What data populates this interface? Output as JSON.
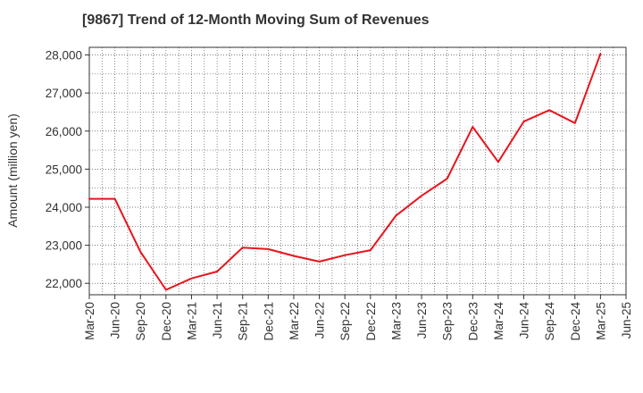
{
  "chart_data": {
    "type": "line",
    "title": "[9867]  Trend of 12-Month Moving Sum of Revenues",
    "xlabel": "",
    "ylabel": "Amount (million yen)",
    "ylim": [
      21700,
      28200
    ],
    "yticks": [
      22000,
      23000,
      24000,
      25000,
      26000,
      27000,
      28000
    ],
    "ytick_labels": [
      "22,000",
      "23,000",
      "24,000",
      "25,000",
      "26,000",
      "27,000",
      "28,000"
    ],
    "x_tick_labels": [
      "Mar-20",
      "Jun-20",
      "Sep-20",
      "Dec-20",
      "Mar-21",
      "Jun-21",
      "Sep-21",
      "Dec-21",
      "Mar-22",
      "Jun-22",
      "Sep-22",
      "Dec-22",
      "Mar-23",
      "Jun-23",
      "Sep-23",
      "Dec-23",
      "Mar-24",
      "Jun-24",
      "Sep-24",
      "Dec-24",
      "Mar-25",
      "Jun-25"
    ],
    "grid": true,
    "series": [
      {
        "color": "#e8141c",
        "x": [
          "Mar-20",
          "Jun-20",
          "Sep-20",
          "Dec-20",
          "Mar-21",
          "Jun-21",
          "Sep-21",
          "Dec-21",
          "Mar-22",
          "Jun-22",
          "Sep-22",
          "Dec-22",
          "Mar-23",
          "Jun-23",
          "Sep-23",
          "Dec-23",
          "Mar-24",
          "Jun-24",
          "Sep-24",
          "Dec-24",
          "Mar-25"
        ],
        "values": [
          24220,
          24220,
          22830,
          21830,
          22130,
          22310,
          22940,
          22900,
          22720,
          22570,
          22740,
          22870,
          23780,
          24300,
          24750,
          26110,
          25190,
          26250,
          26550,
          26210,
          28030
        ]
      }
    ]
  }
}
